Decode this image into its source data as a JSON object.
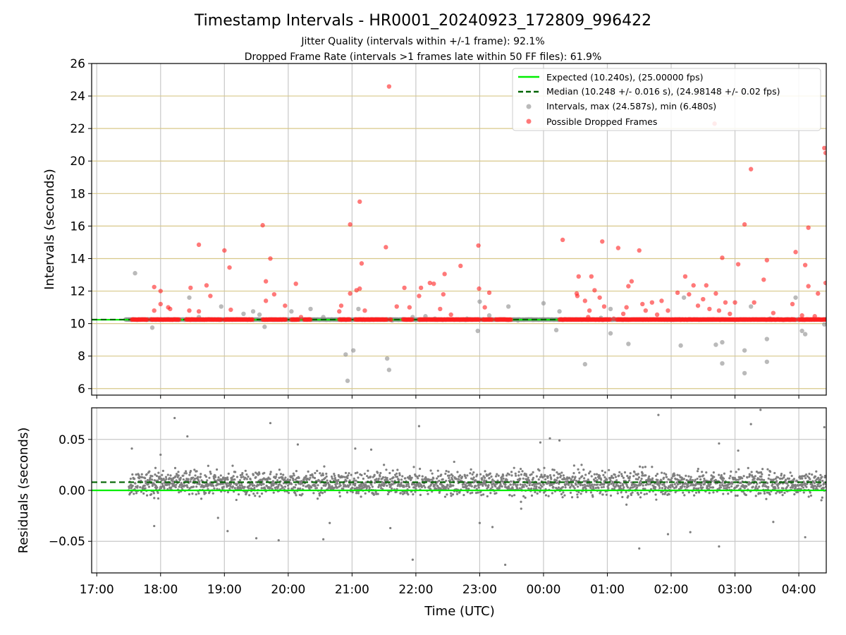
{
  "chart_data": [
    {
      "type": "scatter",
      "title": "Timestamp Intervals - HR0001_20240923_172809_996422",
      "subtitle_lines": [
        "Jitter Quality (intervals within +/-1 frame): 92.1%",
        "Dropped Frame Rate (intervals >1 frames late within 50 FF files): 61.9%"
      ],
      "xlabel": "",
      "ylabel": "Intervals (seconds)",
      "x_unit": "hours since 17:00 UTC",
      "xlim": [
        -0.08,
        11.43
      ],
      "ylim": [
        5.6,
        26
      ],
      "y_ticks": [
        6,
        8,
        10,
        12,
        14,
        16,
        18,
        20,
        22,
        24,
        26
      ],
      "grid": true,
      "legend_position": "top-right",
      "legend": [
        "Expected (10.240s), (25.00000 fps)",
        "Median (10.248 +/- 0.016 s), (24.98148 +/- 0.02 fps)",
        "Intervals, max (24.587s), min (6.480s)",
        "Possible Dropped Frames"
      ],
      "series": [
        {
          "name": "Expected (10.240s), (25.00000 fps)",
          "kind": "hline",
          "y": 10.24,
          "color": "#00ee00"
        },
        {
          "name": "Median (10.248 +/- 0.016 s), (24.98148 +/- 0.02 fps)",
          "kind": "hline-dashed",
          "y": 10.248,
          "color": "#006400"
        },
        {
          "name": "Intervals, max (24.587s), min (6.480s)",
          "kind": "points",
          "color": "#8c8c8c",
          "x_range": [
            0.45,
            11.43
          ],
          "baseline": 10.248,
          "points": [
            [
              0.6,
              13.1
            ],
            [
              0.87,
              9.75
            ],
            [
              1.45,
              11.6
            ],
            [
              1.6,
              10.4
            ],
            [
              1.95,
              11.05
            ],
            [
              2.3,
              10.6
            ],
            [
              2.45,
              10.75
            ],
            [
              2.55,
              10.55
            ],
            [
              2.63,
              9.8
            ],
            [
              3.05,
              10.75
            ],
            [
              3.35,
              10.9
            ],
            [
              3.55,
              10.4
            ],
            [
              3.9,
              8.1
            ],
            [
              3.93,
              6.48
            ],
            [
              4.02,
              8.35
            ],
            [
              4.1,
              10.9
            ],
            [
              4.55,
              7.85
            ],
            [
              4.58,
              7.15
            ],
            [
              4.63,
              10.2
            ],
            [
              4.95,
              10.4
            ],
            [
              5.15,
              10.45
            ],
            [
              5.3,
              10.3
            ],
            [
              5.8,
              10.3
            ],
            [
              5.97,
              9.55
            ],
            [
              6.0,
              11.35
            ],
            [
              6.15,
              10.5
            ],
            [
              6.45,
              11.05
            ],
            [
              6.6,
              10.2
            ],
            [
              7.0,
              11.25
            ],
            [
              7.2,
              9.6
            ],
            [
              7.25,
              10.75
            ],
            [
              7.65,
              7.5
            ],
            [
              7.9,
              10.35
            ],
            [
              8.05,
              10.9
            ],
            [
              8.05,
              9.4
            ],
            [
              8.33,
              8.75
            ],
            [
              9.15,
              8.65
            ],
            [
              9.2,
              11.6
            ],
            [
              9.7,
              8.7
            ],
            [
              9.8,
              8.85
            ],
            [
              9.8,
              7.55
            ],
            [
              10.05,
              10.25
            ],
            [
              10.15,
              8.35
            ],
            [
              10.15,
              6.95
            ],
            [
              10.25,
              11.05
            ],
            [
              10.5,
              9.05
            ],
            [
              10.5,
              7.65
            ],
            [
              10.55,
              10.3
            ],
            [
              10.95,
              11.6
            ],
            [
              11.05,
              9.55
            ],
            [
              11.1,
              9.35
            ],
            [
              11.4,
              9.95
            ]
          ]
        },
        {
          "name": "Possible Dropped Frames",
          "kind": "points",
          "color": "#ff2020",
          "points": [
            [
              0.9,
              12.25
            ],
            [
              0.9,
              10.8
            ],
            [
              1.0,
              12.0
            ],
            [
              1.0,
              11.2
            ],
            [
              1.12,
              11.0
            ],
            [
              1.15,
              10.9
            ],
            [
              1.45,
              10.8
            ],
            [
              1.47,
              12.2
            ],
            [
              1.6,
              14.85
            ],
            [
              1.6,
              10.75
            ],
            [
              1.72,
              12.35
            ],
            [
              1.78,
              11.7
            ],
            [
              2.0,
              14.5
            ],
            [
              2.08,
              13.45
            ],
            [
              2.1,
              10.85
            ],
            [
              2.6,
              16.05
            ],
            [
              2.65,
              12.6
            ],
            [
              2.65,
              11.4
            ],
            [
              2.72,
              14.0
            ],
            [
              2.78,
              11.8
            ],
            [
              2.95,
              11.1
            ],
            [
              3.12,
              12.45
            ],
            [
              3.2,
              10.4
            ],
            [
              3.8,
              10.75
            ],
            [
              3.83,
              11.1
            ],
            [
              3.97,
              16.1
            ],
            [
              3.97,
              11.85
            ],
            [
              4.07,
              12.05
            ],
            [
              4.12,
              17.5
            ],
            [
              4.12,
              12.15
            ],
            [
              4.15,
              13.7
            ],
            [
              4.2,
              10.8
            ],
            [
              4.53,
              14.7
            ],
            [
              4.58,
              24.587
            ],
            [
              4.7,
              11.05
            ],
            [
              4.82,
              12.2
            ],
            [
              4.9,
              11.0
            ],
            [
              5.05,
              11.7
            ],
            [
              5.08,
              12.2
            ],
            [
              5.22,
              12.5
            ],
            [
              5.28,
              12.45
            ],
            [
              5.38,
              10.9
            ],
            [
              5.43,
              11.8
            ],
            [
              5.45,
              13.05
            ],
            [
              5.55,
              10.55
            ],
            [
              5.7,
              13.55
            ],
            [
              5.98,
              14.8
            ],
            [
              5.99,
              12.15
            ],
            [
              6.08,
              11.0
            ],
            [
              6.15,
              11.9
            ],
            [
              7.3,
              15.15
            ],
            [
              7.52,
              11.85
            ],
            [
              7.53,
              11.7
            ],
            [
              7.55,
              12.9
            ],
            [
              7.65,
              11.4
            ],
            [
              7.7,
              10.4
            ],
            [
              7.72,
              10.8
            ],
            [
              7.75,
              12.9
            ],
            [
              7.8,
              12.05
            ],
            [
              7.88,
              11.6
            ],
            [
              7.92,
              15.05
            ],
            [
              7.95,
              11.05
            ],
            [
              8.1,
              10.3
            ],
            [
              8.17,
              14.65
            ],
            [
              8.25,
              10.6
            ],
            [
              8.3,
              11.0
            ],
            [
              8.33,
              12.3
            ],
            [
              8.38,
              12.6
            ],
            [
              8.5,
              14.5
            ],
            [
              8.55,
              11.2
            ],
            [
              8.6,
              10.8
            ],
            [
              8.7,
              11.3
            ],
            [
              8.78,
              10.55
            ],
            [
              8.85,
              11.4
            ],
            [
              8.95,
              10.8
            ],
            [
              9.1,
              11.9
            ],
            [
              9.22,
              12.9
            ],
            [
              9.28,
              11.8
            ],
            [
              9.35,
              12.35
            ],
            [
              9.42,
              11.1
            ],
            [
              9.55,
              12.35
            ],
            [
              9.6,
              10.9
            ],
            [
              9.7,
              11.85
            ],
            [
              9.75,
              10.8
            ],
            [
              9.85,
              11.3
            ],
            [
              9.8,
              14.05
            ],
            [
              9.92,
              10.6
            ],
            [
              10.0,
              11.3
            ],
            [
              10.05,
              13.65
            ],
            [
              10.15,
              16.1
            ],
            [
              10.25,
              19.5
            ],
            [
              10.3,
              11.3
            ],
            [
              10.45,
              12.7
            ],
            [
              10.5,
              13.9
            ],
            [
              10.6,
              10.65
            ],
            [
              10.95,
              14.4
            ],
            [
              11.05,
              10.5
            ],
            [
              11.1,
              13.6
            ],
            [
              11.15,
              15.9
            ],
            [
              11.15,
              12.3
            ],
            [
              11.3,
              11.85
            ],
            [
              11.4,
              20.8
            ],
            [
              11.42,
              20.5
            ],
            [
              11.42,
              12.5
            ],
            [
              11.25,
              10.45
            ],
            [
              10.9,
              11.2
            ],
            [
              9.5,
              11.5
            ],
            [
              9.68,
              22.3
            ]
          ],
          "segments_at_expected": [
            [
              0.55,
              0.8
            ],
            [
              0.85,
              1.3
            ],
            [
              1.4,
              1.95
            ],
            [
              2.0,
              2.45
            ],
            [
              2.6,
              2.97
            ],
            [
              3.05,
              3.17
            ],
            [
              3.25,
              3.35
            ],
            [
              3.8,
              3.97
            ],
            [
              4.05,
              4.55
            ],
            [
              4.6,
              4.62
            ],
            [
              4.8,
              4.95
            ],
            [
              5.05,
              6.0
            ],
            [
              6.05,
              6.2
            ],
            [
              6.25,
              6.5
            ],
            [
              7.25,
              8.05
            ],
            [
              8.15,
              10.95
            ],
            [
              11.0,
              11.43
            ]
          ]
        }
      ]
    },
    {
      "type": "scatter",
      "title": "",
      "xlabel": "Time (UTC)",
      "ylabel": "Residuals (seconds)",
      "x_unit": "hours since 17:00 UTC",
      "xlim": [
        -0.08,
        11.43
      ],
      "ylim": [
        -0.081,
        0.081
      ],
      "y_ticks": [
        -0.05,
        0.0,
        0.05
      ],
      "y_tick_labels": [
        "−0.05",
        "0.00",
        "0.05"
      ],
      "x_ticks": [
        0,
        1,
        2,
        3,
        4,
        5,
        6,
        7,
        8,
        9,
        10,
        11
      ],
      "x_tick_labels": [
        "17:00",
        "18:00",
        "19:00",
        "20:00",
        "21:00",
        "22:00",
        "23:00",
        "00:00",
        "01:00",
        "02:00",
        "03:00",
        "04:00"
      ],
      "grid": true,
      "series": [
        {
          "name": "",
          "kind": "hline",
          "y": 0.0,
          "color": "#00ee00"
        },
        {
          "name": "",
          "kind": "hline-dashed",
          "y": 0.008,
          "color": "#006400"
        },
        {
          "name": "",
          "kind": "points",
          "color": "#7f7f7f",
          "x_range": [
            0.5,
            11.43
          ],
          "center": 0.007,
          "spread": 0.012,
          "outliers": [
            [
              1.22,
              0.071
            ],
            [
              1.42,
              0.053
            ],
            [
              2.72,
              0.066
            ],
            [
              0.55,
              0.041
            ],
            [
              0.92,
              0.022
            ],
            [
              1.0,
              0.035
            ],
            [
              2.05,
              -0.04
            ],
            [
              3.15,
              0.045
            ],
            [
              4.05,
              0.041
            ],
            [
              4.3,
              0.04
            ],
            [
              4.5,
              0.025
            ],
            [
              2.5,
              -0.047
            ],
            [
              2.85,
              -0.049
            ],
            [
              3.55,
              -0.048
            ],
            [
              4.6,
              -0.037
            ],
            [
              5.05,
              0.063
            ],
            [
              4.95,
              -0.068
            ],
            [
              6.0,
              -0.032
            ],
            [
              6.4,
              -0.073
            ],
            [
              6.2,
              -0.036
            ],
            [
              6.95,
              0.047
            ],
            [
              7.1,
              0.051
            ],
            [
              7.25,
              0.049
            ],
            [
              8.3,
              -0.014
            ],
            [
              8.7,
              0.023
            ],
            [
              8.95,
              -0.043
            ],
            [
              9.3,
              -0.041
            ],
            [
              9.75,
              -0.055
            ],
            [
              9.75,
              0.046
            ],
            [
              10.05,
              0.039
            ],
            [
              10.25,
              0.065
            ],
            [
              10.4,
              0.079
            ],
            [
              10.6,
              -0.031
            ],
            [
              11.4,
              0.062
            ],
            [
              11.1,
              -0.046
            ],
            [
              8.5,
              -0.057
            ],
            [
              8.8,
              0.074
            ],
            [
              0.9,
              -0.035
            ],
            [
              1.9,
              -0.027
            ],
            [
              3.65,
              -0.032
            ],
            [
              5.6,
              0.028
            ],
            [
              6.65,
              -0.018
            ]
          ]
        }
      ]
    }
  ]
}
